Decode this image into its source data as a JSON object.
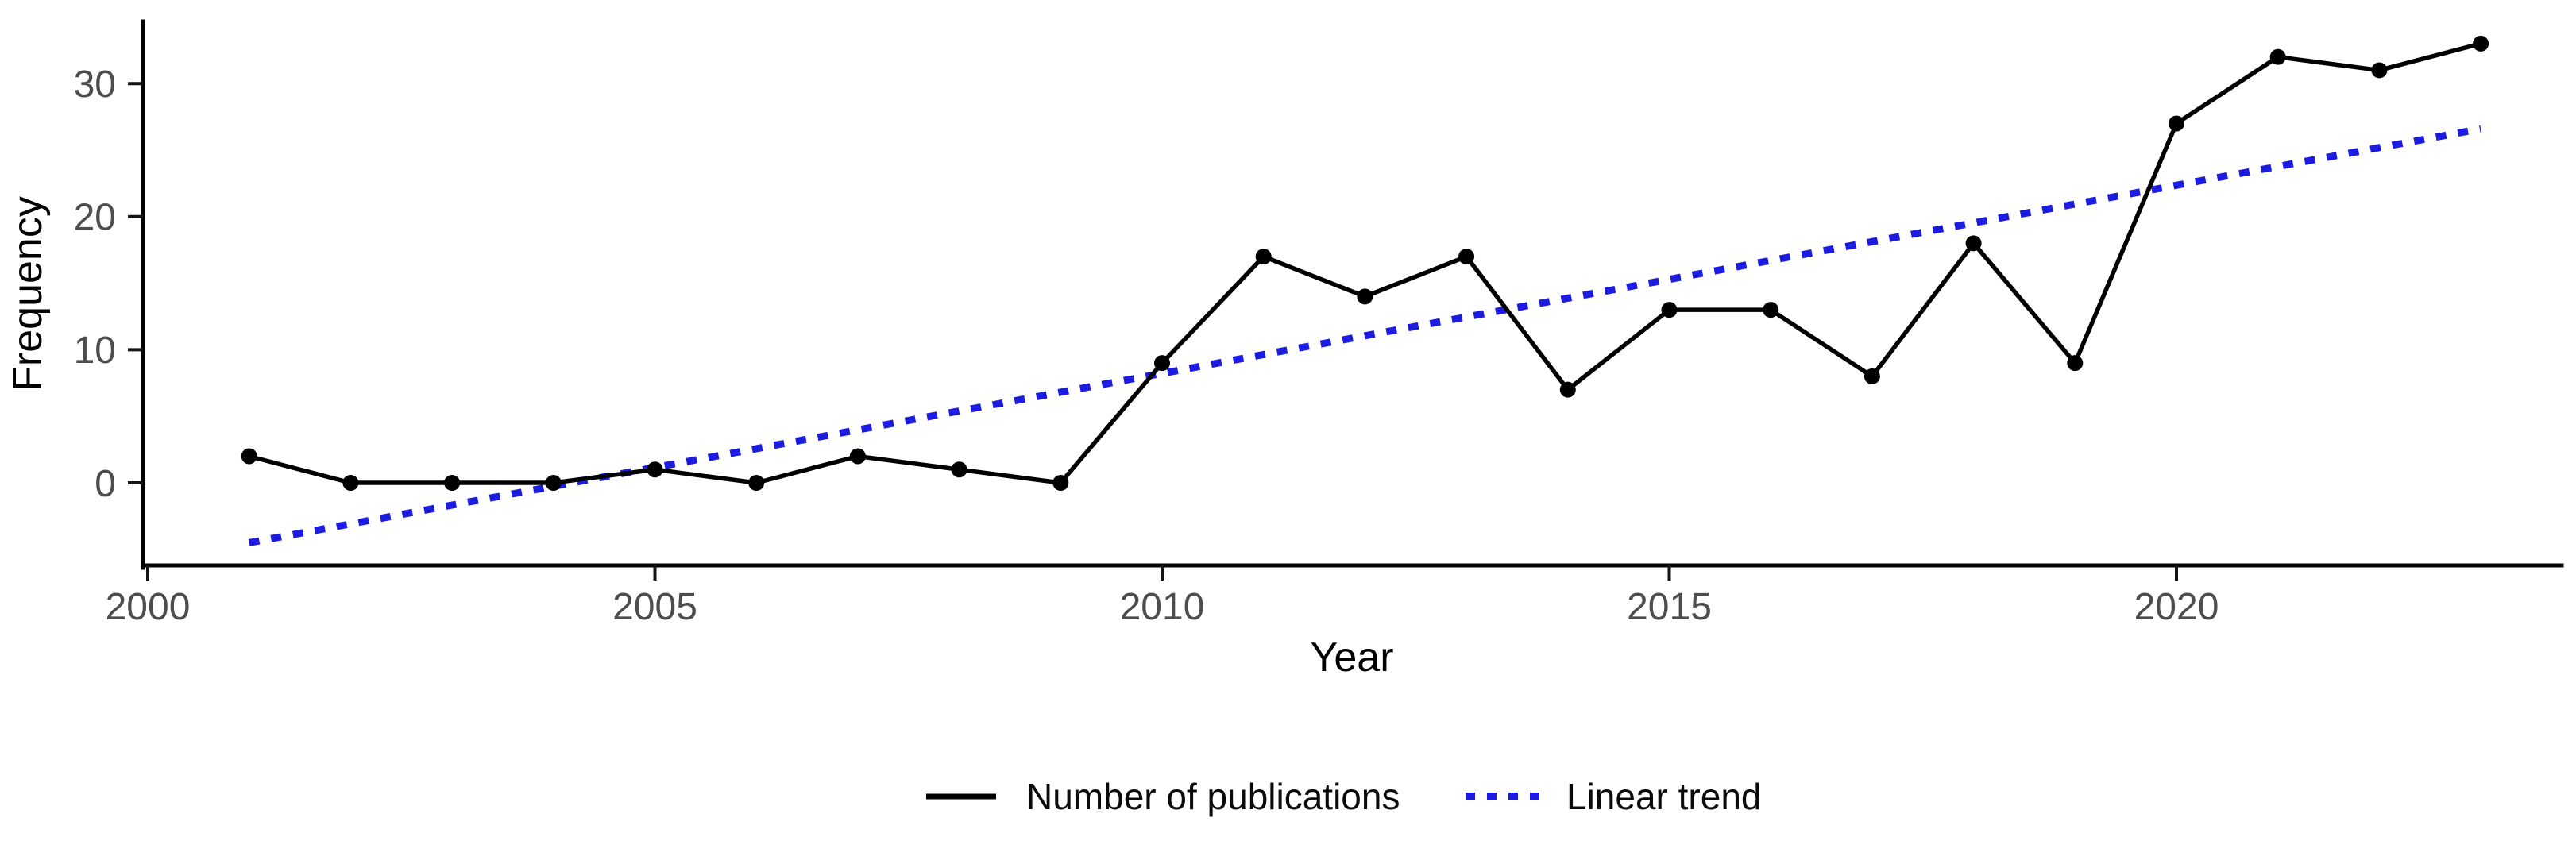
{
  "chart_data": {
    "type": "line",
    "title": "",
    "xlabel": "Year",
    "ylabel": "Frequency",
    "x_ticks": [
      2000,
      2005,
      2010,
      2015,
      2020
    ],
    "y_ticks": [
      0,
      10,
      20,
      30
    ],
    "xlim": [
      1999.9,
      2023.9
    ],
    "ylim": [
      -6,
      34.7
    ],
    "grid": false,
    "legend_position": "bottom-center",
    "x": [
      2001,
      2002,
      2003,
      2004,
      2005,
      2006,
      2007,
      2008,
      2009,
      2010,
      2011,
      2012,
      2013,
      2014,
      2015,
      2016,
      2017,
      2018,
      2019,
      2020,
      2021,
      2022,
      2023
    ],
    "series": [
      {
        "name": "Number of publications",
        "type": "line",
        "style": "solid",
        "marker": "circle",
        "color": "#000000",
        "values": [
          2,
          0,
          0,
          0,
          1,
          0,
          2,
          1,
          0,
          9,
          17,
          14,
          17,
          7,
          13,
          13,
          8,
          18,
          9,
          27,
          32,
          31,
          33
        ]
      },
      {
        "name": "Linear trend",
        "type": "line",
        "style": "dotted",
        "marker": "none",
        "color": "#1c1ce0",
        "trend_endpoints": {
          "x": [
            2001,
            2023
          ],
          "y": [
            -4.5,
            26.6
          ]
        }
      }
    ],
    "colors": {
      "background": "#ffffff",
      "axis": "#000000",
      "tick_labels": "#4d4d4d"
    }
  }
}
